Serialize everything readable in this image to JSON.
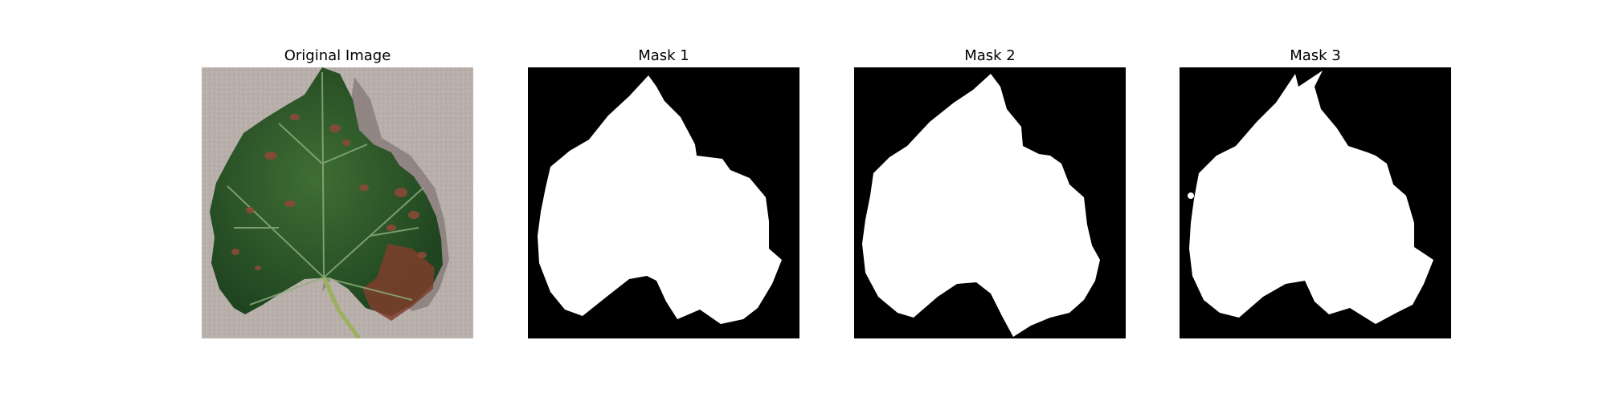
{
  "figure": {
    "panels": [
      {
        "title": "Original Image",
        "kind": "photo",
        "subject": "grape-leaf"
      },
      {
        "title": "Mask 1",
        "kind": "mask"
      },
      {
        "title": "Mask 2",
        "kind": "mask"
      },
      {
        "title": "Mask 3",
        "kind": "mask"
      }
    ]
  },
  "colors": {
    "background": "#ffffff",
    "mask_foreground": "#ffffff",
    "mask_background": "#000000",
    "photo_background": "#b8aeaa",
    "leaf_green": "#2f5a2b",
    "lesion_brown": "#8a4a36"
  }
}
